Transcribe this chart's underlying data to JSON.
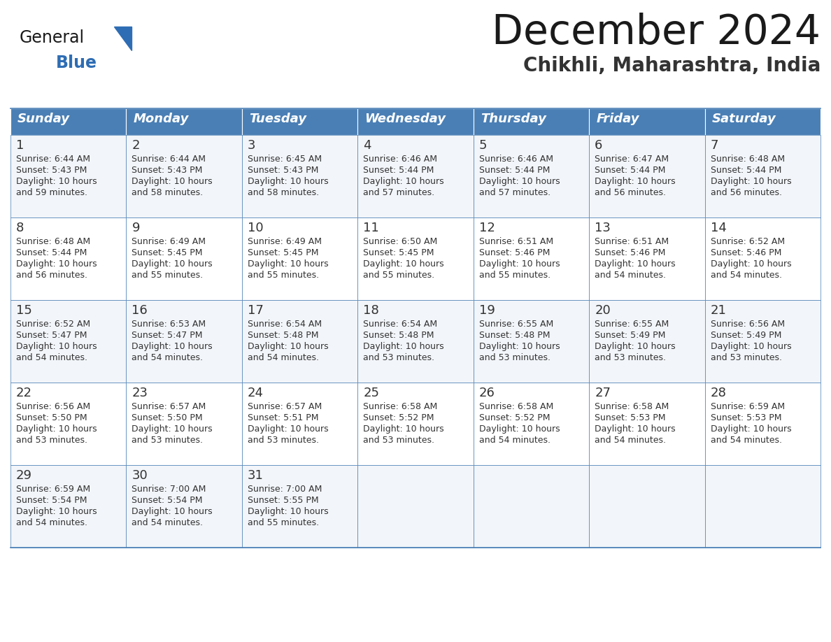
{
  "title": "December 2024",
  "subtitle": "Chikhli, Maharashtra, India",
  "header_bg": "#4a7fb5",
  "header_text_color": "#ffffff",
  "day_names": [
    "Sunday",
    "Monday",
    "Tuesday",
    "Wednesday",
    "Thursday",
    "Friday",
    "Saturday"
  ],
  "cell_bg_odd": "#f2f5f9",
  "cell_bg_even": "#ffffff",
  "border_color": "#4a7fb5",
  "text_color": "#333333",
  "title_color": "#1a1a1a",
  "subtitle_color": "#333333",
  "logo_general_color": "#1a1a1a",
  "logo_blue_color": "#2e6db4",
  "weeks": [
    [
      {
        "day": 1,
        "sunrise": "6:44 AM",
        "sunset": "5:43 PM",
        "daylight": "10 hours and 59 minutes."
      },
      {
        "day": 2,
        "sunrise": "6:44 AM",
        "sunset": "5:43 PM",
        "daylight": "10 hours and 58 minutes."
      },
      {
        "day": 3,
        "sunrise": "6:45 AM",
        "sunset": "5:43 PM",
        "daylight": "10 hours and 58 minutes."
      },
      {
        "day": 4,
        "sunrise": "6:46 AM",
        "sunset": "5:44 PM",
        "daylight": "10 hours and 57 minutes."
      },
      {
        "day": 5,
        "sunrise": "6:46 AM",
        "sunset": "5:44 PM",
        "daylight": "10 hours and 57 minutes."
      },
      {
        "day": 6,
        "sunrise": "6:47 AM",
        "sunset": "5:44 PM",
        "daylight": "10 hours and 56 minutes."
      },
      {
        "day": 7,
        "sunrise": "6:48 AM",
        "sunset": "5:44 PM",
        "daylight": "10 hours and 56 minutes."
      }
    ],
    [
      {
        "day": 8,
        "sunrise": "6:48 AM",
        "sunset": "5:44 PM",
        "daylight": "10 hours and 56 minutes."
      },
      {
        "day": 9,
        "sunrise": "6:49 AM",
        "sunset": "5:45 PM",
        "daylight": "10 hours and 55 minutes."
      },
      {
        "day": 10,
        "sunrise": "6:49 AM",
        "sunset": "5:45 PM",
        "daylight": "10 hours and 55 minutes."
      },
      {
        "day": 11,
        "sunrise": "6:50 AM",
        "sunset": "5:45 PM",
        "daylight": "10 hours and 55 minutes."
      },
      {
        "day": 12,
        "sunrise": "6:51 AM",
        "sunset": "5:46 PM",
        "daylight": "10 hours and 55 minutes."
      },
      {
        "day": 13,
        "sunrise": "6:51 AM",
        "sunset": "5:46 PM",
        "daylight": "10 hours and 54 minutes."
      },
      {
        "day": 14,
        "sunrise": "6:52 AM",
        "sunset": "5:46 PM",
        "daylight": "10 hours and 54 minutes."
      }
    ],
    [
      {
        "day": 15,
        "sunrise": "6:52 AM",
        "sunset": "5:47 PM",
        "daylight": "10 hours and 54 minutes."
      },
      {
        "day": 16,
        "sunrise": "6:53 AM",
        "sunset": "5:47 PM",
        "daylight": "10 hours and 54 minutes."
      },
      {
        "day": 17,
        "sunrise": "6:54 AM",
        "sunset": "5:48 PM",
        "daylight": "10 hours and 54 minutes."
      },
      {
        "day": 18,
        "sunrise": "6:54 AM",
        "sunset": "5:48 PM",
        "daylight": "10 hours and 53 minutes."
      },
      {
        "day": 19,
        "sunrise": "6:55 AM",
        "sunset": "5:48 PM",
        "daylight": "10 hours and 53 minutes."
      },
      {
        "day": 20,
        "sunrise": "6:55 AM",
        "sunset": "5:49 PM",
        "daylight": "10 hours and 53 minutes."
      },
      {
        "day": 21,
        "sunrise": "6:56 AM",
        "sunset": "5:49 PM",
        "daylight": "10 hours and 53 minutes."
      }
    ],
    [
      {
        "day": 22,
        "sunrise": "6:56 AM",
        "sunset": "5:50 PM",
        "daylight": "10 hours and 53 minutes."
      },
      {
        "day": 23,
        "sunrise": "6:57 AM",
        "sunset": "5:50 PM",
        "daylight": "10 hours and 53 minutes."
      },
      {
        "day": 24,
        "sunrise": "6:57 AM",
        "sunset": "5:51 PM",
        "daylight": "10 hours and 53 minutes."
      },
      {
        "day": 25,
        "sunrise": "6:58 AM",
        "sunset": "5:52 PM",
        "daylight": "10 hours and 53 minutes."
      },
      {
        "day": 26,
        "sunrise": "6:58 AM",
        "sunset": "5:52 PM",
        "daylight": "10 hours and 54 minutes."
      },
      {
        "day": 27,
        "sunrise": "6:58 AM",
        "sunset": "5:53 PM",
        "daylight": "10 hours and 54 minutes."
      },
      {
        "day": 28,
        "sunrise": "6:59 AM",
        "sunset": "5:53 PM",
        "daylight": "10 hours and 54 minutes."
      }
    ],
    [
      {
        "day": 29,
        "sunrise": "6:59 AM",
        "sunset": "5:54 PM",
        "daylight": "10 hours and 54 minutes."
      },
      {
        "day": 30,
        "sunrise": "7:00 AM",
        "sunset": "5:54 PM",
        "daylight": "10 hours and 54 minutes."
      },
      {
        "day": 31,
        "sunrise": "7:00 AM",
        "sunset": "5:55 PM",
        "daylight": "10 hours and 55 minutes."
      },
      null,
      null,
      null,
      null
    ]
  ]
}
